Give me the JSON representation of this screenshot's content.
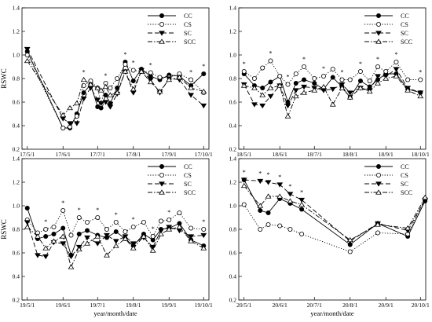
{
  "chart_data": [
    {
      "type": "line",
      "panel": "top-left",
      "ylabel": "RSWC",
      "xlabel": "",
      "ylim": [
        0.2,
        1.4
      ],
      "yticks": [
        0.2,
        0.4,
        0.6,
        0.8,
        1.0,
        1.2,
        1.4
      ],
      "xticks": [
        "17/5/1",
        "17/6/1",
        "17/7/1",
        "17/8/1",
        "17/9/1",
        "17/10/1"
      ],
      "legend_position": "top-right",
      "x": [
        "17/5/1",
        "17/6/1",
        "17/6/7",
        "17/6/13",
        "17/6/19",
        "17/6/25",
        "17/7/1",
        "17/7/4",
        "17/7/8",
        "17/7/12",
        "17/7/18",
        "17/7/25",
        "17/8/1",
        "17/8/8",
        "17/8/16",
        "17/8/24",
        "17/9/1",
        "17/9/10",
        "17/9/20",
        "17/10/1"
      ],
      "series": [
        {
          "name": "CC",
          "values": [
            1.03,
            0.38,
            0.38,
            0.5,
            0.68,
            0.75,
            0.56,
            0.55,
            0.66,
            0.59,
            0.72,
            0.94,
            0.78,
            0.88,
            0.82,
            0.79,
            0.83,
            0.82,
            0.74,
            0.84
          ]
        },
        {
          "name": "CS",
          "values": [
            1.0,
            0.38,
            0.39,
            0.48,
            0.74,
            0.78,
            0.72,
            0.58,
            0.76,
            0.72,
            0.8,
            0.92,
            0.87,
            0.86,
            0.85,
            0.81,
            0.81,
            0.84,
            0.79,
            0.68
          ]
        },
        {
          "name": "SC",
          "values": [
            1.05,
            0.46,
            0.42,
            0.42,
            0.63,
            0.72,
            0.62,
            0.59,
            0.6,
            0.56,
            0.67,
            0.86,
            0.68,
            0.87,
            0.79,
            0.68,
            0.8,
            0.79,
            0.66,
            0.57
          ]
        },
        {
          "name": "SCC",
          "values": [
            0.95,
            0.49,
            0.55,
            0.59,
            0.79,
            0.75,
            0.72,
            0.7,
            0.73,
            0.66,
            0.68,
            0.86,
            0.71,
            0.86,
            0.77,
            0.69,
            0.79,
            0.81,
            0.72,
            0.69
          ]
        }
      ],
      "significance_marks": [
        "17/6/19",
        "17/7/8",
        "17/7/25",
        "17/8/1",
        "17/8/16",
        "17/9/20",
        "17/10/1"
      ]
    },
    {
      "type": "line",
      "panel": "top-right",
      "ylabel": "",
      "xlabel": "",
      "ylim": [
        0.2,
        1.4
      ],
      "yticks": [
        0.2,
        0.4,
        0.6,
        0.8,
        1.0,
        1.2,
        1.4
      ],
      "xticks": [
        "18/5/1",
        "18/6/1",
        "18/7/1",
        "18/8/1",
        "18/9/1",
        "18/10/1"
      ],
      "legend_position": "top-right",
      "x": [
        "18/5/1",
        "18/5/10",
        "18/5/17",
        "18/5/24",
        "18/6/1",
        "18/6/8",
        "18/6/15",
        "18/6/22",
        "18/7/1",
        "18/7/9",
        "18/7/17",
        "18/7/25",
        "18/8/1",
        "18/8/10",
        "18/8/18",
        "18/8/25",
        "18/9/1",
        "18/9/10",
        "18/9/20",
        "18/10/1"
      ],
      "series": [
        {
          "name": "CC",
          "values": [
            0.84,
            0.74,
            0.72,
            0.77,
            0.82,
            0.6,
            0.76,
            0.79,
            0.76,
            0.71,
            0.81,
            0.73,
            0.64,
            0.78,
            0.73,
            0.79,
            0.84,
            0.84,
            0.71,
            0.68
          ]
        },
        {
          "name": "CS",
          "values": [
            0.86,
            0.8,
            0.89,
            0.95,
            0.82,
            0.75,
            0.84,
            0.9,
            0.8,
            0.82,
            0.88,
            0.79,
            0.79,
            0.86,
            0.78,
            0.9,
            0.86,
            0.94,
            0.79,
            0.79
          ]
        },
        {
          "name": "SC",
          "values": [
            0.75,
            0.58,
            0.57,
            0.65,
            0.74,
            0.57,
            0.7,
            0.73,
            0.72,
            0.7,
            0.71,
            0.75,
            0.68,
            0.72,
            0.7,
            0.82,
            0.82,
            0.88,
            0.72,
            0.68
          ]
        },
        {
          "name": "SCC",
          "values": [
            0.74,
            0.72,
            0.66,
            0.72,
            0.74,
            0.48,
            0.65,
            0.68,
            0.7,
            0.73,
            0.58,
            0.72,
            0.64,
            0.72,
            0.69,
            0.76,
            0.8,
            0.82,
            0.7,
            0.65
          ]
        }
      ],
      "significance_marks": [
        "18/5/1",
        "18/5/24",
        "18/6/8",
        "18/6/22",
        "18/7/9",
        "18/7/25",
        "18/8/10",
        "18/8/25",
        "18/9/10",
        "18/10/1"
      ]
    },
    {
      "type": "line",
      "panel": "bottom-left",
      "ylabel": "RSWC",
      "xlabel": "year/month/date",
      "ylim": [
        0.2,
        1.4
      ],
      "yticks": [
        0.2,
        0.4,
        0.6,
        0.8,
        1.0,
        1.2,
        1.4
      ],
      "xticks": [
        "19/5/1",
        "19/6/1",
        "19/7/1",
        "19/8/1",
        "19/9/1",
        "19/10/1"
      ],
      "legend_position": "top-right",
      "x": [
        "19/5/1",
        "19/5/10",
        "19/5/17",
        "19/5/24",
        "19/6/1",
        "19/6/8",
        "19/6/15",
        "19/6/22",
        "19/7/1",
        "19/7/9",
        "19/7/17",
        "19/7/25",
        "19/8/1",
        "19/8/10",
        "19/8/18",
        "19/8/25",
        "19/9/1",
        "19/9/10",
        "19/9/20",
        "19/10/1"
      ],
      "series": [
        {
          "name": "CC",
          "values": [
            0.98,
            0.72,
            0.74,
            0.76,
            0.81,
            0.58,
            0.76,
            0.79,
            0.75,
            0.73,
            0.78,
            0.72,
            0.66,
            0.76,
            0.71,
            0.8,
            0.81,
            0.85,
            0.71,
            0.66
          ]
        },
        {
          "name": "CS",
          "values": [
            0.88,
            0.77,
            0.8,
            0.82,
            0.96,
            0.75,
            0.9,
            0.86,
            0.9,
            0.8,
            0.86,
            0.78,
            0.82,
            0.86,
            0.74,
            0.87,
            0.88,
            0.94,
            0.81,
            0.8
          ]
        },
        {
          "name": "SC",
          "values": [
            0.86,
            0.58,
            0.57,
            0.69,
            0.68,
            0.57,
            0.65,
            0.73,
            0.68,
            0.75,
            0.7,
            0.74,
            0.68,
            0.73,
            0.65,
            0.79,
            0.82,
            0.79,
            0.74,
            0.75
          ]
        },
        {
          "name": "SCC",
          "values": [
            0.82,
            0.74,
            0.64,
            0.7,
            0.74,
            0.48,
            0.63,
            0.68,
            0.74,
            0.58,
            0.66,
            0.72,
            0.64,
            0.74,
            0.62,
            0.76,
            0.8,
            0.82,
            0.7,
            0.64
          ]
        }
      ],
      "significance_marks": [
        "19/5/17",
        "19/6/1",
        "19/6/15",
        "19/7/1",
        "19/7/17",
        "19/8/1",
        "19/8/18",
        "19/9/1",
        "19/10/1"
      ]
    },
    {
      "type": "line",
      "panel": "bottom-right",
      "ylabel": "",
      "xlabel": "year/month/date",
      "ylim": [
        0.2,
        1.4
      ],
      "yticks": [
        0.2,
        0.4,
        0.6,
        0.8,
        1.0,
        1.2,
        1.4
      ],
      "xticks": [
        "20/5/1",
        "20/6/1",
        "20/7/1",
        "20/8/1",
        "20/9/1",
        "20/10/1"
      ],
      "legend_position": "top-right",
      "x": [
        "20/5/1",
        "20/5/15",
        "20/5/22",
        "20/6/1",
        "20/6/10",
        "20/6/20",
        "20/8/1",
        "20/8/25",
        "20/9/20",
        "20/10/5"
      ],
      "series": [
        {
          "name": "CC",
          "values": [
            1.22,
            0.96,
            0.94,
            1.06,
            1.02,
            0.97,
            0.67,
            0.85,
            0.74,
            1.04
          ]
        },
        {
          "name": "CS",
          "values": [
            1.01,
            0.8,
            0.84,
            0.83,
            0.8,
            0.76,
            0.61,
            0.77,
            0.76,
            1.06
          ]
        },
        {
          "name": "SC",
          "values": [
            1.22,
            1.21,
            1.2,
            1.18,
            1.1,
            1.05,
            0.7,
            0.85,
            0.79,
            1.05
          ]
        },
        {
          "name": "SCC",
          "values": [
            1.17,
            1.0,
            1.08,
            1.08,
            1.04,
            1.01,
            0.71,
            0.84,
            0.81,
            1.07
          ]
        }
      ],
      "significance_marks": [
        "20/5/1",
        "20/5/15",
        "20/5/22",
        "20/6/1",
        "20/6/10",
        "20/6/20"
      ]
    }
  ]
}
